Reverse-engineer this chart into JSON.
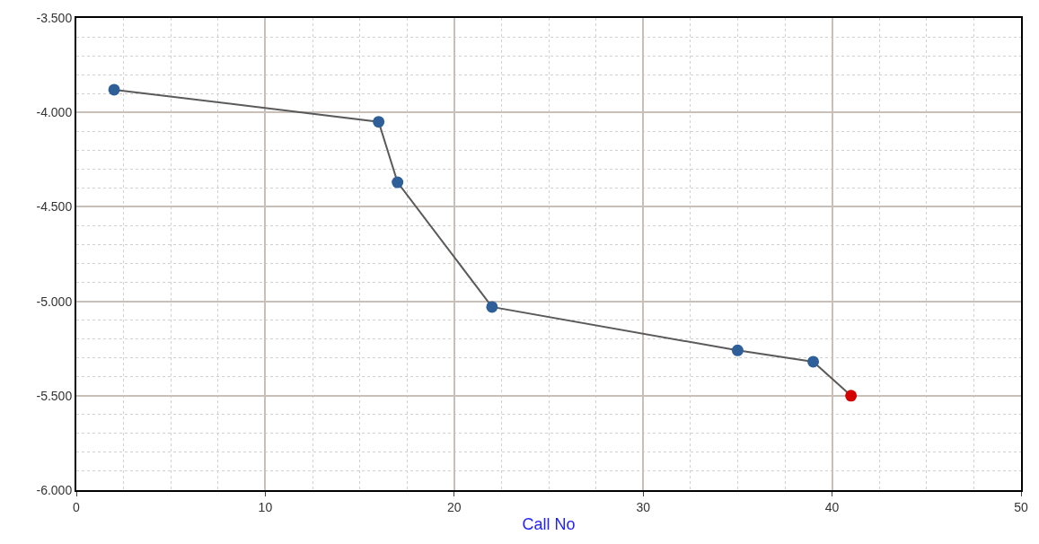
{
  "chart_data": {
    "type": "line",
    "xlabel": "Call No",
    "x": [
      2,
      16,
      17,
      22,
      35,
      39,
      41
    ],
    "series": [
      {
        "color": "#5a5a5a",
        "colors": [
          "#2e5f99",
          "#2e5f99",
          "#2e5f99",
          "#2e5f99",
          "#2e5f99",
          "#2e5f99",
          "#d40000"
        ],
        "values": [
          -3880,
          -4050,
          -4370,
          -5030,
          -5260,
          -5320,
          -5500
        ]
      }
    ],
    "xlim": [
      0,
      50
    ],
    "xticks": [
      0,
      10,
      20,
      30,
      40,
      50
    ],
    "ylim": [
      -6000,
      -3500
    ],
    "yticks": [
      {
        "value": -6000,
        "label": "-6.000"
      },
      {
        "value": -5500,
        "label": "-5.500"
      },
      {
        "value": -5000,
        "label": "-5.000"
      },
      {
        "value": -4500,
        "label": "-4.500"
      },
      {
        "value": -4000,
        "label": "-4.000"
      },
      {
        "value": -3500,
        "label": "-3.500"
      }
    ],
    "grid": true,
    "marker": "circle",
    "line_style": "solid"
  }
}
